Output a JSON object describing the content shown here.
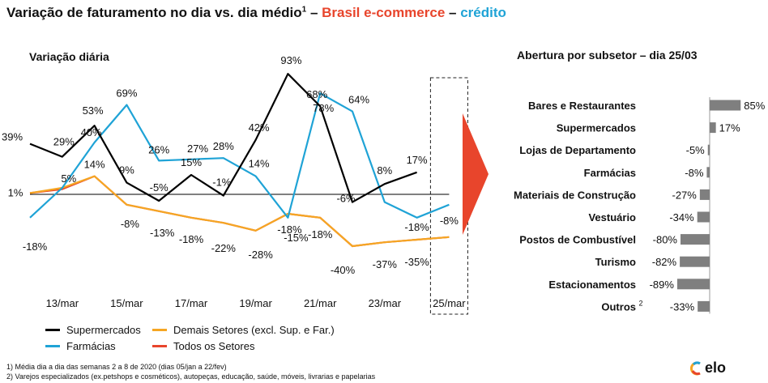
{
  "header": {
    "title_main": "Variação de faturamento no dia vs. dia médio",
    "title_sup": "1",
    "title_sep1": " – ",
    "title_brand": "Brasil e-commerce",
    "title_sep2": " – ",
    "title_credit": "crédito"
  },
  "colors": {
    "supermercados": "#000000",
    "farmacias": "#1FA3D6",
    "demais": "#F5A623",
    "todos": "#E8452C",
    "bars": "#7F7F7F",
    "arrow": "#E8452C"
  },
  "chart_data": [
    {
      "type": "line",
      "title": "Variação diária",
      "x_ticks": [
        "13/mar",
        "15/mar",
        "17/mar",
        "19/mar",
        "21/mar",
        "23/mar",
        "25/mar"
      ],
      "x": [
        "12/mar",
        "13/mar",
        "14/mar",
        "15/mar",
        "16/mar",
        "17/mar",
        "18/mar",
        "19/mar",
        "20/mar",
        "21/mar",
        "22/mar",
        "23/mar",
        "24/mar",
        "25/mar"
      ],
      "series": [
        {
          "name": "Supermercados",
          "color_key": "supermercados",
          "values": [
            39,
            29,
            53,
            9,
            -5,
            15,
            -1,
            42,
            93,
            68,
            -6,
            8,
            17,
            null
          ],
          "labels": [
            "39%",
            "29%",
            "53%",
            "9%",
            "-5%",
            "15%",
            "-1%",
            "42%",
            "93%",
            "68%",
            "-6%",
            "8%",
            "17%",
            null
          ]
        },
        {
          "name": "Farmácias",
          "color_key": "farmacias",
          "values": [
            -18,
            5,
            40,
            69,
            26,
            27,
            28,
            14,
            -18,
            78,
            64,
            -6,
            -18,
            -8
          ],
          "labels": [
            "-18%",
            "5%",
            "40%",
            "69%",
            "26%",
            "27%",
            "28%",
            "14%",
            "-18%",
            "78%",
            "64%",
            null,
            "-18%",
            "-8%"
          ]
        },
        {
          "name": "Demais Setores (excl. Sup. e Far.)",
          "color_key": "demais",
          "values": [
            1,
            5,
            14,
            -8,
            -13,
            -18,
            -22,
            -28,
            -15,
            -18,
            -40,
            -37,
            -35,
            -33
          ],
          "labels": [
            null,
            null,
            null,
            null,
            null,
            null,
            null,
            null,
            null,
            null,
            null,
            null,
            null,
            null
          ]
        },
        {
          "name": "Todos os Setores",
          "color_key": "todos",
          "values": [
            1,
            4,
            14,
            -8,
            -13,
            -18,
            -22,
            -28,
            -15,
            -18,
            -40,
            -37,
            -35,
            -33
          ],
          "labels": [
            "1%",
            null,
            "14%",
            "-8%",
            "-13%",
            "-18%",
            "-22%",
            "-28%",
            "-15%",
            "-18%",
            "-40%",
            "-37%",
            "-35%",
            null
          ]
        }
      ],
      "highlight_x": "25/mar"
    },
    {
      "type": "bar",
      "orientation": "horizontal",
      "title": "Abertura por subsetor – dia 25/03",
      "categories": [
        "Bares e Restaurantes",
        "Supermercados",
        "Lojas de Departamento",
        "Farmácias",
        "Materiais de Construção",
        "Vestuário",
        "Postos de Combustível",
        "Turismo",
        "Estacionamentos",
        "Outros"
      ],
      "category_sups": [
        "",
        "",
        "",
        "",
        "",
        "",
        "",
        "",
        "",
        "2"
      ],
      "values": [
        85,
        17,
        -5,
        -8,
        -27,
        -34,
        -80,
        -82,
        -89,
        -33
      ],
      "value_labels": [
        "85%",
        "17%",
        "-5%",
        "-8%",
        "-27%",
        "-34%",
        "-80%",
        "-82%",
        "-89%",
        "-33%"
      ]
    }
  ],
  "footnotes": [
    "1)    Média dia a dia das semanas 2 a 8 de 2020 (dias 05/jan a 22/fev)",
    "2)    Varejos especializados (ex.petshops e cosméticos), autopeças, educação, saúde, móveis, livrarias e papelarias"
  ],
  "logo": {
    "text": "elo"
  }
}
